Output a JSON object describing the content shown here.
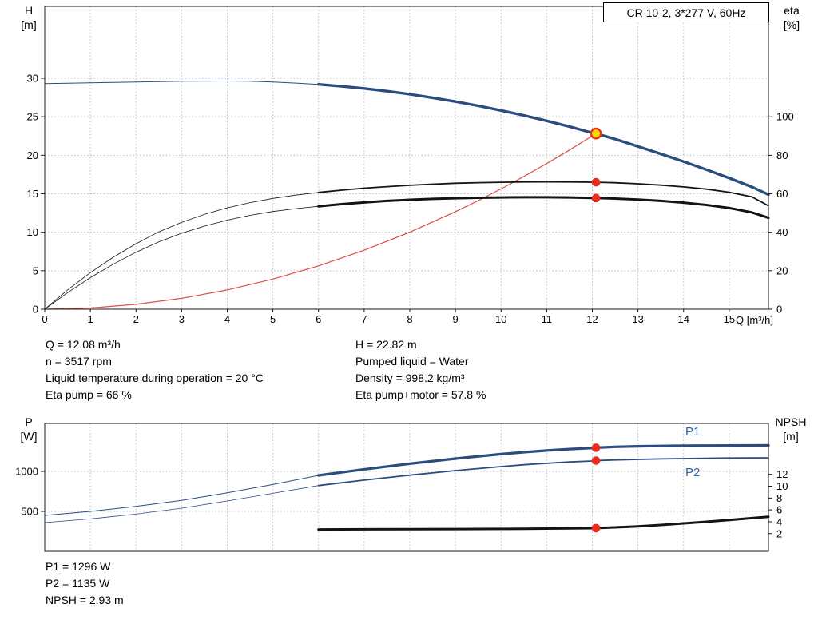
{
  "colors": {
    "blue": "#2a4d7f",
    "blue_label": "#2c62a6",
    "black": "#141414",
    "red": "#e82c1e",
    "red_curve": "#dd4f44",
    "yellow": "#ffd800",
    "grid": "#bbbbbb"
  },
  "top_chart": {
    "y_left_label": "H",
    "y_left_unit": "[m]",
    "y_right_label": "eta",
    "y_right_unit": "[%]",
    "x_label": "Q [m³/h]"
  },
  "bottom_chart": {
    "y_left_label": "P",
    "y_left_unit": "[W]",
    "y_right_label": "NPSH",
    "y_right_unit": "[m]"
  },
  "info_top": {
    "left": [
      "Q = 12.08 m³/h",
      "n = 3517 rpm",
      "Liquid temperature during operation = 20 °C",
      "Eta pump = 66 %"
    ],
    "right": [
      "H = 22.82 m",
      "Pumped liquid = Water",
      "Density = 998.2 kg/m³",
      "Eta pump+motor = 57.8 %"
    ]
  },
  "info_bottom": [
    "P1 = 1296 W",
    "P2 = 1135 W",
    "NPSH = 2.93 m"
  ],
  "chart_data": [
    {
      "type": "line",
      "title": "CR 10-2, 3*277 V, 60Hz",
      "xlabel": "Q [m³/h]",
      "ylabel_left": "H [m]",
      "ylabel_right": "eta [%]",
      "xlim": [
        0,
        15.86
      ],
      "ylim_left": [
        0,
        39.34
      ],
      "ylim_right": [
        0,
        157.4
      ],
      "x_ticks": [
        0,
        1,
        2,
        3,
        4,
        5,
        6,
        7,
        8,
        9,
        10,
        11,
        12,
        13,
        14,
        15
      ],
      "y_ticks_left": [
        0,
        5,
        10,
        15,
        20,
        25,
        30
      ],
      "y_ticks_right": [
        0,
        20,
        40,
        60,
        80,
        100
      ],
      "show_x_labels": true,
      "grid": true,
      "series": [
        {
          "name": "system-curve",
          "axis": "left",
          "color": "red_curve",
          "width": 1.2,
          "x": [
            0,
            1,
            2,
            3,
            4,
            5,
            6,
            7,
            8,
            9,
            9.5,
            10,
            10.5,
            11,
            11.5,
            12,
            12.08
          ],
          "y": [
            0,
            0.16,
            0.63,
            1.41,
            2.5,
            3.91,
            5.63,
            7.66,
            10.01,
            12.67,
            14.11,
            15.63,
            17.24,
            18.92,
            20.68,
            22.52,
            22.82
          ]
        },
        {
          "name": "eta-pump",
          "axis": "right",
          "color": "black",
          "split_at": 6,
          "thin": 0.8,
          "width": 1.8,
          "x": [
            0,
            0.5,
            1,
            1.5,
            2,
            2.5,
            3,
            3.5,
            4,
            4.5,
            5,
            5.5,
            6,
            6.5,
            7,
            7.5,
            8,
            8.5,
            9,
            9.5,
            10,
            10.5,
            11,
            11.5,
            12,
            12.08,
            12.5,
            13,
            13.5,
            14,
            14.5,
            15,
            15.5,
            15.86
          ],
          "y": [
            0,
            10,
            19,
            27,
            34,
            40.2,
            45.2,
            49.3,
            52.7,
            55.4,
            57.6,
            59.3,
            60.7,
            61.9,
            62.9,
            63.7,
            64.4,
            65,
            65.5,
            65.8,
            66,
            66.15,
            66.2,
            66.15,
            66.02,
            66,
            65.75,
            65.2,
            64.5,
            63.6,
            62.4,
            60.8,
            58.4,
            53.8
          ]
        },
        {
          "name": "eta-pump-motor",
          "axis": "right",
          "color": "black",
          "split_at": 6,
          "thin": 0.8,
          "width": 3,
          "x": [
            0,
            0.5,
            1,
            1.5,
            2,
            2.5,
            3,
            3.5,
            4,
            4.5,
            5,
            5.5,
            6,
            6.5,
            7,
            7.5,
            8,
            8.5,
            9,
            9.5,
            10,
            10.5,
            11,
            11.5,
            12,
            12.08,
            12.5,
            13,
            13.5,
            14,
            14.5,
            15,
            15.5,
            15.86
          ],
          "y": [
            0,
            8.6,
            16.4,
            23.4,
            29.6,
            35,
            39.5,
            43.2,
            46.3,
            48.8,
            50.8,
            52.3,
            53.5,
            54.6,
            55.5,
            56.3,
            56.9,
            57.35,
            57.7,
            57.95,
            58.1,
            58.2,
            58.2,
            58.1,
            57.85,
            57.8,
            57.5,
            57,
            56.3,
            55.4,
            54.2,
            52.6,
            50.3,
            47.5
          ]
        },
        {
          "name": "head",
          "axis": "left",
          "color": "blue",
          "split_at": 6,
          "thin": 1,
          "width": 3.4,
          "x": [
            0,
            0.5,
            1,
            1.5,
            2,
            2.5,
            3,
            3.5,
            4,
            4.5,
            5,
            5.5,
            6,
            6.5,
            7,
            7.5,
            8,
            8.5,
            9,
            9.5,
            10,
            10.5,
            11,
            11.5,
            12,
            12.08,
            12.5,
            13,
            13.5,
            14,
            14.5,
            15,
            15.5,
            15.86
          ],
          "y": [
            29.3,
            29.35,
            29.4,
            29.45,
            29.5,
            29.55,
            29.6,
            29.62,
            29.63,
            29.6,
            29.5,
            29.37,
            29.2,
            28.95,
            28.67,
            28.32,
            27.92,
            27.47,
            26.97,
            26.42,
            25.82,
            25.17,
            24.47,
            23.72,
            22.9,
            22.82,
            22.1,
            21.15,
            20.18,
            19.18,
            18.13,
            17.03,
            15.88,
            14.9
          ]
        }
      ],
      "points": [
        {
          "name": "eta-pump-point",
          "axis": "right",
          "x": 12.08,
          "y": 66,
          "style": "dot"
        },
        {
          "name": "eta-pump-motor-point",
          "axis": "right",
          "x": 12.08,
          "y": 57.8,
          "style": "dot"
        },
        {
          "name": "operating-point",
          "axis": "left",
          "x": 12.08,
          "y": 22.82,
          "style": "ring"
        }
      ]
    },
    {
      "type": "line",
      "title": "",
      "xlabel": "",
      "ylabel_left": "P [W]",
      "ylabel_right": "NPSH [m]",
      "xlim": [
        0,
        15.86
      ],
      "ylim_left": [
        0,
        1600
      ],
      "ylim_right": [
        -1,
        20.6
      ],
      "x_ticks": [
        0,
        1,
        2,
        3,
        4,
        5,
        6,
        7,
        8,
        9,
        10,
        11,
        12,
        13,
        14,
        15
      ],
      "y_ticks_left": [
        500,
        1000
      ],
      "y_ticks_right": [
        2,
        4,
        6,
        8,
        10,
        12
      ],
      "show_x_labels": false,
      "grid": true,
      "series": [
        {
          "name": "p2",
          "axis": "left",
          "color": "blue",
          "split_at": 6,
          "thin": 0.8,
          "width": 1.8,
          "x": [
            0,
            1,
            2,
            3,
            4,
            5,
            6,
            7,
            8,
            9,
            10,
            10.5,
            11,
            11.5,
            12,
            12.08,
            12.5,
            13,
            13.5,
            14,
            14.5,
            15,
            15.5,
            15.86
          ],
          "y": [
            360,
            406,
            466,
            540,
            630,
            726,
            823,
            891,
            953,
            1010,
            1060,
            1083,
            1101,
            1118,
            1130,
            1135,
            1143,
            1150,
            1156,
            1160,
            1164,
            1167,
            1169,
            1170
          ]
        },
        {
          "name": "p1",
          "axis": "left",
          "color": "blue",
          "split_at": 6,
          "thin": 1,
          "width": 3.2,
          "x": [
            0,
            1,
            2,
            3,
            4,
            5,
            6,
            7,
            8,
            9,
            10,
            10.5,
            11,
            11.5,
            12,
            12.08,
            12.5,
            13,
            13.5,
            14,
            14.5,
            15,
            15.5,
            15.86
          ],
          "y": [
            450,
            500,
            562,
            638,
            732,
            836,
            950,
            1026,
            1096,
            1160,
            1216,
            1240,
            1261,
            1279,
            1292,
            1296,
            1307,
            1314,
            1318,
            1321,
            1323,
            1324,
            1325,
            1326
          ]
        },
        {
          "name": "npsh",
          "axis": "right",
          "color": "black",
          "width": 3,
          "x": [
            6,
            7,
            8,
            9,
            10,
            10.5,
            11,
            11.5,
            12,
            12.08,
            12.5,
            13,
            13.5,
            14,
            14.5,
            15,
            15.5,
            15.86
          ],
          "y": [
            2.7,
            2.72,
            2.74,
            2.77,
            2.8,
            2.82,
            2.85,
            2.88,
            2.92,
            2.93,
            3.05,
            3.22,
            3.45,
            3.72,
            4.0,
            4.3,
            4.62,
            4.85
          ]
        }
      ],
      "labels": [
        {
          "name": "p1-series-label",
          "text": "P1",
          "x": 14.2,
          "value": 1321,
          "axis": "left",
          "dy": -13
        },
        {
          "name": "p2-series-label",
          "text": "P2",
          "x": 14.2,
          "value": 1161,
          "axis": "left",
          "dy": 22
        }
      ],
      "points": [
        {
          "name": "p1-point",
          "axis": "left",
          "x": 12.08,
          "y": 1296,
          "style": "dot"
        },
        {
          "name": "p2-point",
          "axis": "left",
          "x": 12.08,
          "y": 1135,
          "style": "dot"
        },
        {
          "name": "npsh-point",
          "axis": "right",
          "x": 12.08,
          "y": 2.93,
          "style": "dot"
        }
      ]
    }
  ]
}
